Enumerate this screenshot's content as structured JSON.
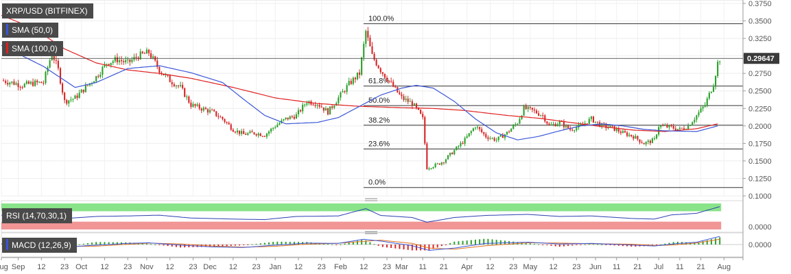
{
  "header": {
    "symbol": "XRP/USD (BITFINEX)",
    "sma50_label": "SMA (50,0)",
    "sma100_label": "SMA (100,0)",
    "rsi_label": "RSI (14,70,30,1)",
    "macd_label": "MACD (12,26,9)"
  },
  "colors": {
    "up_candle": "#2ca02c",
    "down_candle": "#d62728",
    "sma50": "#3a55d8",
    "sma100": "#e02020",
    "rsi_line": "#2a3fb0",
    "rsi_overbought": "#7ce07c",
    "rsi_oversold": "#f08a8a",
    "macd_line": "#3a55d8",
    "macd_signal": "#e0701a",
    "badge_bg": "#4a4a4a",
    "price_tag": "#3a3a3a"
  },
  "chart_data": {
    "type": "candlestick",
    "price_axis": {
      "ticks": [
        "0.3750",
        "0.3500",
        "0.3250",
        "0.3000",
        "0.2750",
        "0.2500",
        "0.2250",
        "0.2000",
        "0.1750",
        "0.1500",
        "0.1250",
        "0.1000"
      ],
      "ylim": [
        0.1,
        0.375
      ]
    },
    "current_price": "0.29647",
    "fibonacci": [
      {
        "label": "100.0%",
        "value": 0.346
      },
      {
        "label": "61.8%",
        "value": 0.257
      },
      {
        "label": "50.0%",
        "value": 0.229
      },
      {
        "label": "38.2%",
        "value": 0.201
      },
      {
        "label": "23.6%",
        "value": 0.167
      },
      {
        "label": "0.0%",
        "value": 0.112
      }
    ],
    "x_axis": {
      "labels": [
        "Aug",
        "Sep",
        "12",
        "23",
        "Oct",
        "12",
        "23",
        "Nov",
        "12",
        "23",
        "Dec",
        "12",
        "23",
        "Jan",
        "12",
        "23",
        "Feb",
        "12",
        "23",
        "Mar",
        "11",
        "21",
        "Apr",
        "12",
        "23",
        "May",
        "12",
        "23",
        "Jun",
        "11",
        "21",
        "Jul",
        "11",
        "21",
        "Aug"
      ],
      "day_index": [
        0,
        8,
        19,
        30,
        38,
        49,
        60,
        69,
        80,
        91,
        99,
        110,
        121,
        130,
        141,
        152,
        161,
        172,
        183,
        190,
        200,
        210,
        221,
        232,
        243,
        251,
        262,
        273,
        282,
        292,
        302,
        312,
        322,
        332,
        343
      ]
    },
    "close_keypoints": [
      [
        0,
        0.265
      ],
      [
        5,
        0.262
      ],
      [
        10,
        0.258
      ],
      [
        15,
        0.261
      ],
      [
        20,
        0.262
      ],
      [
        24,
        0.305
      ],
      [
        27,
        0.28
      ],
      [
        30,
        0.235
      ],
      [
        35,
        0.24
      ],
      [
        40,
        0.255
      ],
      [
        45,
        0.27
      ],
      [
        50,
        0.29
      ],
      [
        55,
        0.295
      ],
      [
        60,
        0.29
      ],
      [
        65,
        0.3
      ],
      [
        70,
        0.305
      ],
      [
        75,
        0.28
      ],
      [
        80,
        0.265
      ],
      [
        85,
        0.255
      ],
      [
        90,
        0.23
      ],
      [
        95,
        0.225
      ],
      [
        100,
        0.22
      ],
      [
        105,
        0.21
      ],
      [
        110,
        0.195
      ],
      [
        115,
        0.188
      ],
      [
        120,
        0.19
      ],
      [
        125,
        0.187
      ],
      [
        130,
        0.2
      ],
      [
        135,
        0.21
      ],
      [
        140,
        0.215
      ],
      [
        145,
        0.235
      ],
      [
        150,
        0.232
      ],
      [
        155,
        0.22
      ],
      [
        160,
        0.24
      ],
      [
        165,
        0.26
      ],
      [
        170,
        0.275
      ],
      [
        173,
        0.335
      ],
      [
        176,
        0.3
      ],
      [
        180,
        0.28
      ],
      [
        185,
        0.26
      ],
      [
        190,
        0.24
      ],
      [
        195,
        0.232
      ],
      [
        198,
        0.22
      ],
      [
        200,
        0.21
      ],
      [
        202,
        0.14
      ],
      [
        207,
        0.145
      ],
      [
        210,
        0.15
      ],
      [
        215,
        0.165
      ],
      [
        220,
        0.18
      ],
      [
        225,
        0.2
      ],
      [
        230,
        0.185
      ],
      [
        235,
        0.18
      ],
      [
        240,
        0.19
      ],
      [
        245,
        0.205
      ],
      [
        248,
        0.225
      ],
      [
        252,
        0.222
      ],
      [
        257,
        0.215
      ],
      [
        260,
        0.2
      ],
      [
        265,
        0.205
      ],
      [
        270,
        0.195
      ],
      [
        275,
        0.2
      ],
      [
        280,
        0.21
      ],
      [
        285,
        0.2
      ],
      [
        290,
        0.197
      ],
      [
        295,
        0.19
      ],
      [
        300,
        0.185
      ],
      [
        305,
        0.175
      ],
      [
        310,
        0.18
      ],
      [
        312,
        0.2
      ],
      [
        318,
        0.198
      ],
      [
        322,
        0.195
      ],
      [
        326,
        0.2
      ],
      [
        330,
        0.215
      ],
      [
        334,
        0.23
      ],
      [
        338,
        0.26
      ],
      [
        340,
        0.29
      ],
      [
        341,
        0.296
      ]
    ],
    "sma50_keypoints": [
      [
        0,
        0.315
      ],
      [
        20,
        0.285
      ],
      [
        35,
        0.255
      ],
      [
        45,
        0.262
      ],
      [
        60,
        0.282
      ],
      [
        75,
        0.286
      ],
      [
        90,
        0.276
      ],
      [
        105,
        0.262
      ],
      [
        115,
        0.238
      ],
      [
        125,
        0.215
      ],
      [
        135,
        0.203
      ],
      [
        150,
        0.205
      ],
      [
        160,
        0.212
      ],
      [
        170,
        0.228
      ],
      [
        180,
        0.244
      ],
      [
        190,
        0.254
      ],
      [
        197,
        0.258
      ],
      [
        205,
        0.254
      ],
      [
        215,
        0.235
      ],
      [
        225,
        0.21
      ],
      [
        235,
        0.19
      ],
      [
        245,
        0.18
      ],
      [
        255,
        0.185
      ],
      [
        265,
        0.193
      ],
      [
        275,
        0.2
      ],
      [
        285,
        0.203
      ],
      [
        295,
        0.2
      ],
      [
        305,
        0.195
      ],
      [
        315,
        0.193
      ],
      [
        330,
        0.192
      ],
      [
        340,
        0.2
      ]
    ],
    "sma100_keypoints": [
      [
        0,
        0.358
      ],
      [
        15,
        0.34
      ],
      [
        30,
        0.31
      ],
      [
        45,
        0.29
      ],
      [
        60,
        0.28
      ],
      [
        75,
        0.275
      ],
      [
        90,
        0.268
      ],
      [
        110,
        0.255
      ],
      [
        130,
        0.24
      ],
      [
        150,
        0.232
      ],
      [
        170,
        0.228
      ],
      [
        190,
        0.226
      ],
      [
        205,
        0.225
      ],
      [
        220,
        0.222
      ],
      [
        240,
        0.215
      ],
      [
        255,
        0.211
      ],
      [
        270,
        0.205
      ],
      [
        285,
        0.199
      ],
      [
        300,
        0.194
      ],
      [
        315,
        0.192
      ],
      [
        330,
        0.196
      ],
      [
        340,
        0.203
      ]
    ],
    "rsi_keypoints": [
      [
        0,
        55
      ],
      [
        20,
        48
      ],
      [
        30,
        42
      ],
      [
        45,
        50
      ],
      [
        60,
        52
      ],
      [
        75,
        55
      ],
      [
        90,
        44
      ],
      [
        110,
        40
      ],
      [
        125,
        38
      ],
      [
        140,
        50
      ],
      [
        160,
        52
      ],
      [
        173,
        80
      ],
      [
        180,
        54
      ],
      [
        195,
        46
      ],
      [
        202,
        28
      ],
      [
        215,
        46
      ],
      [
        230,
        54
      ],
      [
        250,
        58
      ],
      [
        265,
        50
      ],
      [
        280,
        52
      ],
      [
        300,
        42
      ],
      [
        310,
        40
      ],
      [
        318,
        56
      ],
      [
        330,
        62
      ],
      [
        341,
        88
      ]
    ],
    "macd_keypoints": [
      [
        0,
        0.002
      ],
      [
        20,
        -0.004
      ],
      [
        30,
        -0.009
      ],
      [
        45,
        -0.002
      ],
      [
        60,
        0.004
      ],
      [
        70,
        0.006
      ],
      [
        85,
        -0.002
      ],
      [
        100,
        -0.008
      ],
      [
        115,
        -0.01
      ],
      [
        130,
        -0.002
      ],
      [
        145,
        0.005
      ],
      [
        160,
        0.004
      ],
      [
        172,
        0.018
      ],
      [
        180,
        0.012
      ],
      [
        195,
        -0.004
      ],
      [
        203,
        -0.02
      ],
      [
        215,
        -0.012
      ],
      [
        230,
        0.004
      ],
      [
        250,
        0.008
      ],
      [
        265,
        0.002
      ],
      [
        280,
        0.004
      ],
      [
        300,
        -0.002
      ],
      [
        310,
        -0.005
      ],
      [
        320,
        0.003
      ],
      [
        330,
        0.008
      ],
      [
        341,
        0.028
      ]
    ],
    "macd_axis_label": "0.0000",
    "rsi_axis_label": "0.0000"
  }
}
